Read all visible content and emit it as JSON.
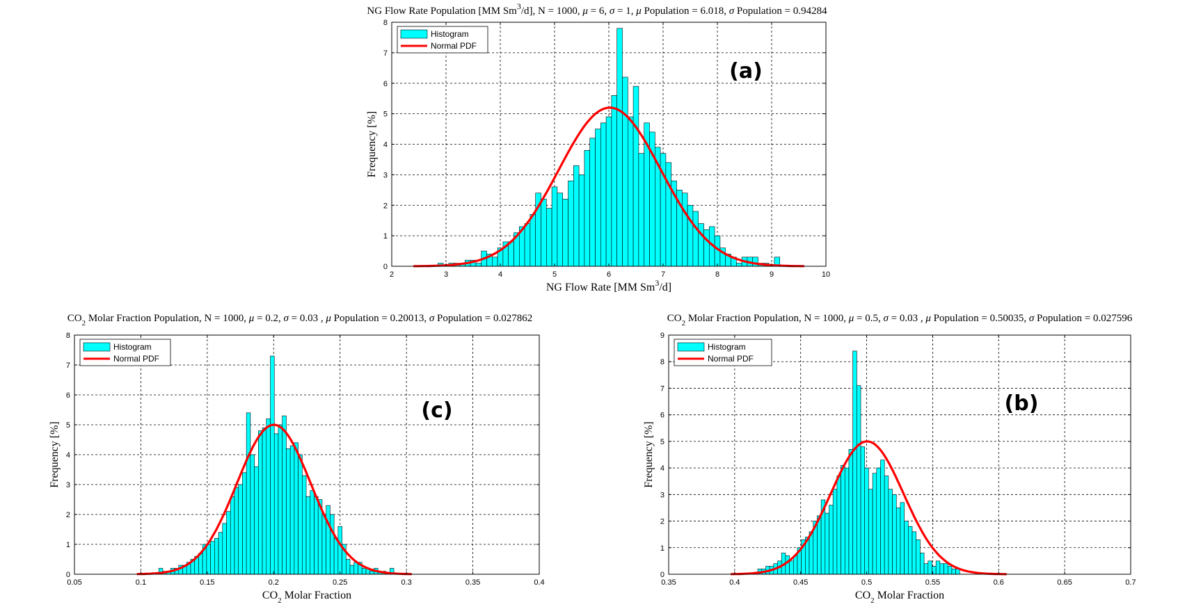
{
  "chart_data": [
    {
      "id": "a",
      "type": "bar",
      "title": "NG Flow Rate Population [MM Sm3/d], N = 1000, μ = 6, σ = 1, μ Population = 6.018, σ Population = 0.94284",
      "xlabel": "NG Flow Rate [MM Sm3/d]",
      "ylabel": "Frequency [%]",
      "panel_label": "(a)",
      "xlim": [
        2,
        10
      ],
      "ylim": [
        0,
        8
      ],
      "xticks": [
        "2",
        "3",
        "4",
        "5",
        "6",
        "7",
        "8",
        "9",
        "10"
      ],
      "yticks": [
        "0",
        "1",
        "2",
        "3",
        "4",
        "5",
        "6",
        "7",
        "8"
      ],
      "grid": true,
      "legend_position": "top-left",
      "legend": [
        "Histogram",
        "Normal PDF"
      ],
      "bin_start": 2.85,
      "bin_width": 0.1,
      "values": [
        0.1,
        0,
        0.1,
        0.1,
        0.1,
        0.2,
        0.2,
        0.1,
        0.5,
        0.4,
        0.3,
        0.6,
        0.8,
        0.8,
        1.1,
        1.3,
        1.4,
        1.7,
        2.4,
        2.2,
        1.9,
        2.6,
        2.4,
        2.2,
        2.8,
        3.3,
        3.0,
        3.8,
        4.2,
        4.5,
        4.7,
        4.9,
        5.6,
        7.8,
        6.2,
        4.9,
        5.9,
        3.7,
        4.7,
        4.4,
        3.9,
        3.7,
        3.4,
        2.8,
        2.5,
        2.4,
        2.0,
        1.8,
        1.4,
        1.2,
        1.3,
        1.0,
        0.6,
        0.4,
        0.3,
        0.1,
        0.3,
        0.3,
        0.3,
        0.1,
        0.1,
        0,
        0.3
      ],
      "pdf": {
        "mean": 6.018,
        "sd": 0.94284,
        "peak_pct": 5.2,
        "range": [
          2.4,
          9.6
        ]
      }
    },
    {
      "id": "c",
      "type": "bar",
      "title": "CO2 Molar Fraction Population, N = 1000, μ = 0.2, σ = 0.03 , μ Population = 0.20013, σ Population = 0.027862",
      "xlabel": "CO2 Molar Fraction",
      "ylabel": "Frequency [%]",
      "panel_label": "(c)",
      "xlim": [
        0.05,
        0.4
      ],
      "ylim": [
        0,
        8
      ],
      "xticks": [
        "0.05",
        "0.1",
        "0.15",
        "0.2",
        "0.25",
        "0.3",
        "0.35",
        "0.4"
      ],
      "yticks": [
        "0",
        "1",
        "2",
        "3",
        "4",
        "5",
        "6",
        "7",
        "8"
      ],
      "grid": true,
      "legend_position": "top-left",
      "legend": [
        "Histogram",
        "Normal PDF"
      ],
      "bin_start": 0.1135,
      "bin_width": 0.003,
      "values": [
        0.2,
        0.1,
        0.1,
        0.2,
        0.2,
        0.3,
        0.3,
        0.4,
        0.5,
        0.6,
        0.7,
        1.0,
        1.0,
        1.1,
        1.2,
        1.4,
        1.7,
        2.1,
        2.6,
        2.9,
        3.0,
        3.4,
        5.4,
        4.0,
        3.6,
        4.8,
        4.9,
        5.2,
        7.3,
        4.7,
        5.0,
        5.3,
        4.2,
        4.3,
        4.4,
        4.0,
        3.3,
        2.6,
        2.8,
        2.6,
        2.5,
        2.0,
        2.3,
        2.0,
        1.2,
        1.6,
        1.0,
        0.5,
        0.3,
        0.4,
        0.4,
        0.2,
        0.2,
        0.1,
        0.2,
        0.1,
        0.1,
        0,
        0.2
      ],
      "pdf": {
        "mean": 0.20013,
        "sd": 0.027862,
        "peak_pct": 5.0,
        "range": [
          0.097,
          0.304
        ]
      }
    },
    {
      "id": "b",
      "type": "bar",
      "title": "CO2 Molar Fraction Population, N = 1000, μ = 0.5, σ = 0.03 , μ Population = 0.50035, σ Population = 0.027596",
      "xlabel": "CO2 Molar Fraction",
      "ylabel": "Frequency [%]",
      "panel_label": "(b)",
      "xlim": [
        0.35,
        0.7
      ],
      "ylim": [
        0,
        9
      ],
      "xticks": [
        "0.35",
        "0.4",
        "0.45",
        "0.5",
        "0.55",
        "0.6",
        "0.65",
        "0.7"
      ],
      "yticks": [
        "0",
        "1",
        "2",
        "3",
        "4",
        "5",
        "6",
        "7",
        "8",
        "9"
      ],
      "grid": true,
      "legend_position": "top-left",
      "legend": [
        "Histogram",
        "Normal PDF"
      ],
      "bin_start": 0.4175,
      "bin_width": 0.003,
      "values": [
        0.2,
        0.2,
        0.3,
        0.3,
        0.4,
        0.5,
        0.8,
        0.7,
        0.5,
        0.7,
        1.0,
        1.3,
        1.4,
        1.6,
        2.0,
        2.2,
        2.8,
        2.3,
        2.6,
        3.2,
        3.7,
        4.1,
        4.0,
        4.7,
        8.4,
        7.1,
        4.8,
        4.0,
        3.2,
        3.8,
        4.0,
        4.3,
        3.7,
        3.2,
        3.0,
        2.5,
        2.7,
        2.0,
        1.8,
        1.6,
        1.3,
        0.8,
        0.4,
        0.5,
        0.3,
        0.5,
        0.4,
        0.4,
        0.3,
        0.2,
        0.2
      ],
      "pdf": {
        "mean": 0.50035,
        "sd": 0.027596,
        "peak_pct": 5.0,
        "range": [
          0.397,
          0.606
        ]
      }
    }
  ]
}
